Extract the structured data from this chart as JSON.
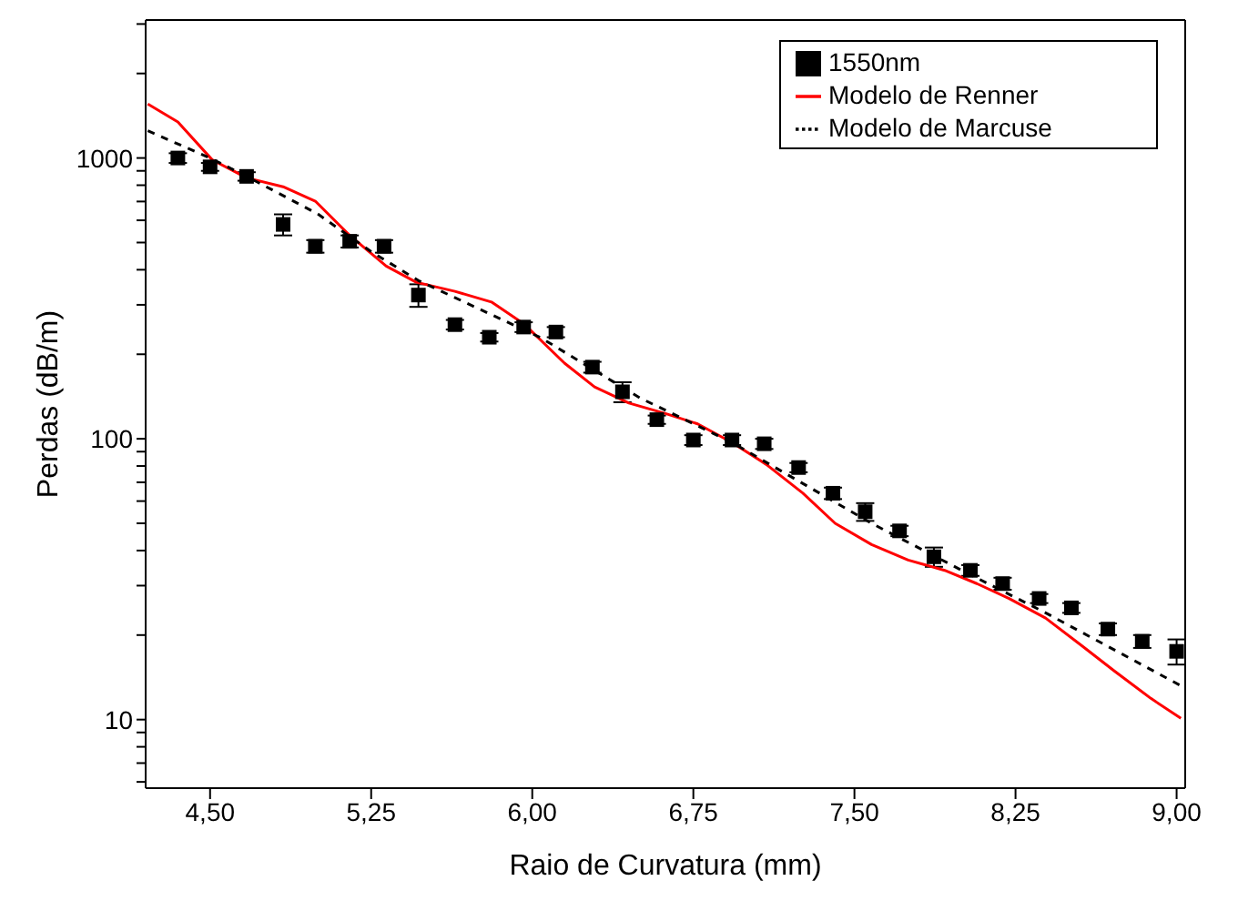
{
  "chart_data": {
    "type": "scatter",
    "xlabel": "Raio de Curvatura (mm)",
    "ylabel": "Perdas (dB/m)",
    "log": "y",
    "grid": false,
    "legend": "top right",
    "xlim": [
      4.2,
      9.04
    ],
    "xticks": [
      {
        "value": 4.5,
        "label": "4,50"
      },
      {
        "value": 5.25,
        "label": "5,25"
      },
      {
        "value": 6,
        "label": "6,00"
      },
      {
        "value": 6.75,
        "label": "6,75"
      },
      {
        "value": 7.5,
        "label": "7,50"
      },
      {
        "value": 8.25,
        "label": "8,25"
      },
      {
        "value": 9,
        "label": "9,00"
      }
    ],
    "ylim": [
      5.7,
      3100
    ],
    "yticks": [
      {
        "value": 6,
        "label": null
      },
      {
        "value": 7,
        "label": null
      },
      {
        "value": 8,
        "label": null
      },
      {
        "value": 9,
        "label": null
      },
      10,
      {
        "value": 20,
        "label": null
      },
      {
        "value": 30,
        "label": null
      },
      {
        "value": 40,
        "label": null
      },
      {
        "value": 50,
        "label": null
      },
      {
        "value": 60,
        "label": null
      },
      {
        "value": 70,
        "label": null
      },
      {
        "value": 80,
        "label": null
      },
      {
        "value": 90,
        "label": null
      },
      100,
      {
        "value": 200,
        "label": null
      },
      {
        "value": 300,
        "label": null
      },
      {
        "value": 400,
        "label": null
      },
      {
        "value": 500,
        "label": null
      },
      {
        "value": 600,
        "label": null
      },
      {
        "value": 700,
        "label": null
      },
      {
        "value": 800,
        "label": null
      },
      {
        "value": 900,
        "label": null
      },
      1000,
      {
        "value": 2000,
        "label": null
      },
      {
        "value": 3000,
        "label": null
      }
    ],
    "series": [
      {
        "name": "1550nm",
        "marker": "square",
        "color": "#000000",
        "x": [
          4.35,
          4.5,
          4.67,
          4.84,
          4.99,
          5.15,
          5.31,
          5.47,
          5.64,
          5.8,
          5.96,
          6.11,
          6.28,
          6.42,
          6.58,
          6.75,
          6.93,
          7.08,
          7.24,
          7.4,
          7.55,
          7.71,
          7.87,
          8.04,
          8.19,
          8.36,
          8.51,
          8.68,
          8.84,
          9.0
        ],
        "values": [
          1000,
          930,
          860,
          580,
          485,
          505,
          485,
          325,
          255,
          230,
          250,
          240,
          180,
          147,
          117,
          99,
          99,
          96,
          79,
          64,
          55,
          47,
          38,
          34,
          30.5,
          27,
          25,
          21,
          19,
          17.5
        ],
        "errors": [
          40,
          30,
          30,
          50,
          25,
          25,
          25,
          30,
          10,
          8,
          10,
          10,
          8,
          12,
          4,
          4,
          4,
          4,
          3,
          3,
          4,
          2,
          3,
          1.5,
          1.5,
          1,
          1,
          1,
          1,
          1.8
        ]
      },
      {
        "name": "Modelo de Renner",
        "type": "line",
        "marker": "none",
        "line_style": "solid",
        "color": "#ff0000",
        "x": [
          4.21,
          4.35,
          4.51,
          4.67,
          4.84,
          4.99,
          5.15,
          5.32,
          5.46,
          5.64,
          5.81,
          5.96,
          6.15,
          6.29,
          6.45,
          6.62,
          6.77,
          6.93,
          7.09,
          7.26,
          7.41,
          7.58,
          7.75,
          7.92,
          8.07,
          8.22,
          8.39,
          8.56,
          8.71,
          8.88,
          9.02
        ],
        "values": [
          1557,
          1343,
          985,
          850,
          790,
          702,
          530,
          412,
          361,
          335,
          307,
          257,
          186,
          153,
          134,
          123,
          113,
          97,
          81,
          64,
          50,
          42,
          37,
          34,
          30.5,
          27,
          23,
          18.3,
          14.9,
          11.9,
          10.1
        ]
      },
      {
        "name": "Modelo de Marcuse",
        "type": "line",
        "marker": "none",
        "line_style": "dashed",
        "color": "#000000",
        "x": [
          4.21,
          4.5,
          4.67,
          5.0,
          5.25,
          5.47,
          6.04,
          6.5,
          6.93,
          7.58,
          8.0,
          8.39,
          9.02
        ],
        "values": [
          1250,
          1000,
          860,
          633,
          464,
          366,
          229,
          140,
          97,
          50,
          34,
          24,
          13.2
        ]
      }
    ]
  }
}
